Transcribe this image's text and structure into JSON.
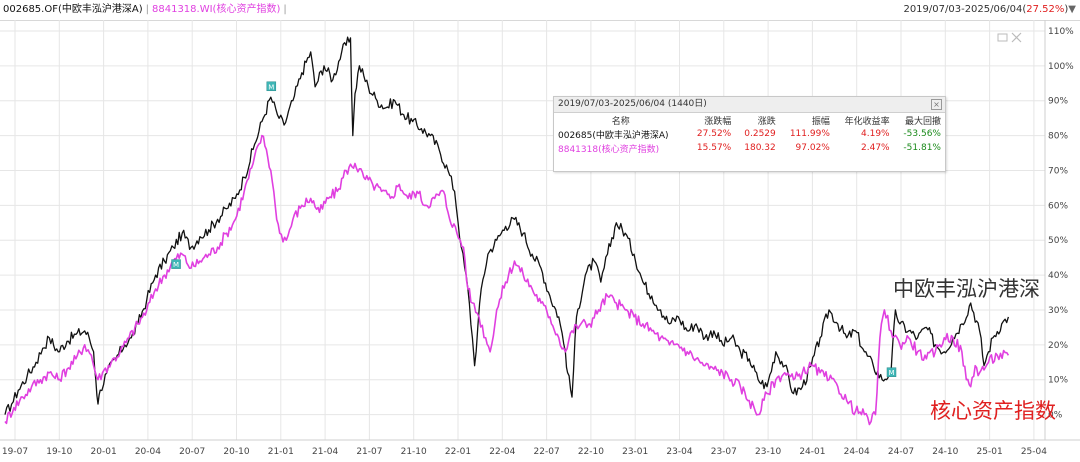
{
  "header": {
    "fund_label": "002685.OF(中欧丰泓沪港深A)",
    "index_label": "8841318.WI(核心资产指数)",
    "range_label": "2019/07/03-2025/06/04",
    "range_pct": "27.52%"
  },
  "colors": {
    "fund": "#111111",
    "index": "#e040e0",
    "grid": "#e6e6e6",
    "badge": "#3fb6b6"
  },
  "stats_panel": {
    "title": "2019/07/03-2025/06/04 (1440日)",
    "columns": [
      "名称",
      "涨跌幅",
      "涨跌",
      "振幅",
      "年化收益率",
      "最大回撤"
    ],
    "rows": [
      {
        "name": "002685(中欧丰泓沪港深A)",
        "change_pct": "27.52%",
        "change": "0.2529",
        "amplitude": "111.99%",
        "annual_return": "4.19%",
        "max_drawdown": "-53.56%"
      },
      {
        "name": "8841318(核心资产指数)",
        "change_pct": "15.57%",
        "change": "180.32",
        "amplitude": "97.02%",
        "annual_return": "2.47%",
        "max_drawdown": "-51.81%"
      }
    ]
  },
  "annotations": {
    "fund_name": "中欧丰泓沪港深",
    "index_name": "核心资产指数",
    "marker": "M"
  },
  "chart_data": {
    "type": "line",
    "x_ticks": [
      "19-07",
      "19-10",
      "20-01",
      "20-04",
      "20-07",
      "20-10",
      "21-01",
      "21-04",
      "21-07",
      "21-10",
      "22-01",
      "22-04",
      "22-07",
      "22-10",
      "23-01",
      "23-04",
      "23-07",
      "23-10",
      "24-01",
      "24-04",
      "24-07",
      "24-10",
      "25-01",
      "25-04"
    ],
    "y_ticks": [
      "0%",
      "10%",
      "20%",
      "30%",
      "40%",
      "50%",
      "60%",
      "70%",
      "80%",
      "90%",
      "100%",
      "110%"
    ],
    "ylim": [
      -5,
      112
    ],
    "series": [
      {
        "name": "002685.OF(中欧丰泓沪港深A)",
        "color": "#111111",
        "points": [
          [
            0,
            0
          ],
          [
            0.15,
            3
          ],
          [
            0.3,
            7
          ],
          [
            0.5,
            11
          ],
          [
            0.7,
            15
          ],
          [
            0.85,
            19
          ],
          [
            1,
            22
          ],
          [
            1.2,
            18
          ],
          [
            1.4,
            21
          ],
          [
            1.6,
            23
          ],
          [
            1.8,
            24
          ],
          [
            1.9,
            22
          ],
          [
            2.0,
            18
          ],
          [
            2.05,
            10
          ],
          [
            2.1,
            3
          ],
          [
            2.15,
            7
          ],
          [
            2.3,
            12
          ],
          [
            2.5,
            16
          ],
          [
            2.7,
            20
          ],
          [
            2.85,
            22
          ],
          [
            3,
            26
          ],
          [
            3.2,
            33
          ],
          [
            3.4,
            40
          ],
          [
            3.6,
            44
          ],
          [
            3.8,
            48
          ],
          [
            4,
            52
          ],
          [
            4.2,
            48
          ],
          [
            4.4,
            51
          ],
          [
            4.6,
            53
          ],
          [
            4.8,
            56
          ],
          [
            5,
            59
          ],
          [
            5.2,
            62
          ],
          [
            5.4,
            68
          ],
          [
            5.6,
            76
          ],
          [
            5.8,
            84
          ],
          [
            6,
            91
          ],
          [
            6.15,
            86
          ],
          [
            6.3,
            83
          ],
          [
            6.5,
            90
          ],
          [
            6.7,
            98
          ],
          [
            6.9,
            104
          ],
          [
            7,
            94
          ],
          [
            7.2,
            100
          ],
          [
            7.4,
            96
          ],
          [
            7.6,
            104
          ],
          [
            7.8,
            108
          ],
          [
            7.85,
            80
          ],
          [
            7.9,
            92
          ],
          [
            8,
            100
          ],
          [
            8.2,
            94
          ],
          [
            8.4,
            90
          ],
          [
            8.6,
            88
          ],
          [
            8.8,
            90
          ],
          [
            9,
            86
          ],
          [
            9.2,
            84
          ],
          [
            9.4,
            82
          ],
          [
            9.6,
            80
          ],
          [
            9.8,
            76
          ],
          [
            10,
            70
          ],
          [
            10.15,
            64
          ],
          [
            10.3,
            48
          ],
          [
            10.45,
            36
          ],
          [
            10.55,
            22
          ],
          [
            10.6,
            14
          ],
          [
            10.75,
            36
          ],
          [
            10.9,
            46
          ],
          [
            11.1,
            50
          ],
          [
            11.3,
            54
          ],
          [
            11.5,
            56
          ],
          [
            11.7,
            52
          ],
          [
            11.9,
            46
          ],
          [
            12.1,
            42
          ],
          [
            12.3,
            34
          ],
          [
            12.5,
            28
          ],
          [
            12.65,
            18
          ],
          [
            12.7,
            12
          ],
          [
            12.8,
            5
          ],
          [
            12.9,
            28
          ],
          [
            13.1,
            40
          ],
          [
            13.3,
            44
          ],
          [
            13.45,
            38
          ],
          [
            13.6,
            46
          ],
          [
            13.8,
            55
          ],
          [
            14,
            52
          ],
          [
            14.2,
            46
          ],
          [
            14.4,
            38
          ],
          [
            14.6,
            34
          ],
          [
            14.8,
            30
          ],
          [
            15,
            26
          ],
          [
            15.2,
            28
          ],
          [
            15.4,
            24
          ],
          [
            15.6,
            26
          ],
          [
            15.8,
            22
          ],
          [
            16,
            24
          ],
          [
            16.2,
            20
          ],
          [
            16.4,
            22
          ],
          [
            16.6,
            18
          ],
          [
            16.8,
            16
          ],
          [
            17,
            10
          ],
          [
            17.2,
            8
          ],
          [
            17.4,
            18
          ],
          [
            17.6,
            14
          ],
          [
            17.8,
            6
          ],
          [
            18,
            8
          ],
          [
            18.2,
            14
          ],
          [
            18.4,
            22
          ],
          [
            18.6,
            30
          ],
          [
            18.8,
            26
          ],
          [
            19,
            22
          ],
          [
            19.2,
            24
          ],
          [
            19.4,
            18
          ],
          [
            19.6,
            14
          ],
          [
            19.8,
            10
          ],
          [
            20,
            12
          ],
          [
            20.1,
            30
          ],
          [
            20.2,
            26
          ],
          [
            20.4,
            24
          ],
          [
            20.6,
            22
          ],
          [
            20.8,
            25
          ],
          [
            21,
            20
          ],
          [
            21.2,
            18
          ],
          [
            21.4,
            22
          ],
          [
            21.6,
            26
          ],
          [
            21.8,
            32
          ],
          [
            22,
            24
          ],
          [
            22.1,
            14
          ],
          [
            22.2,
            18
          ],
          [
            22.3,
            22
          ],
          [
            22.5,
            26
          ],
          [
            22.65,
            28
          ]
        ]
      },
      {
        "name": "8841318.WI(核心资产指数)",
        "color": "#e040e0",
        "points": [
          [
            0,
            -2
          ],
          [
            0.2,
            2
          ],
          [
            0.4,
            5
          ],
          [
            0.6,
            8
          ],
          [
            0.8,
            10
          ],
          [
            1,
            12
          ],
          [
            1.2,
            10
          ],
          [
            1.4,
            13
          ],
          [
            1.6,
            16
          ],
          [
            1.8,
            20
          ],
          [
            1.95,
            17
          ],
          [
            2.0,
            14
          ],
          [
            2.1,
            10
          ],
          [
            2.2,
            12
          ],
          [
            2.4,
            15
          ],
          [
            2.6,
            18
          ],
          [
            2.8,
            22
          ],
          [
            3,
            26
          ],
          [
            3.2,
            30
          ],
          [
            3.4,
            36
          ],
          [
            3.6,
            40
          ],
          [
            3.8,
            44
          ],
          [
            4,
            46
          ],
          [
            4.2,
            42
          ],
          [
            4.4,
            44
          ],
          [
            4.6,
            46
          ],
          [
            4.8,
            48
          ],
          [
            5,
            52
          ],
          [
            5.2,
            56
          ],
          [
            5.4,
            64
          ],
          [
            5.6,
            72
          ],
          [
            5.8,
            80
          ],
          [
            5.9,
            76
          ],
          [
            6,
            70
          ],
          [
            6.1,
            60
          ],
          [
            6.2,
            52
          ],
          [
            6.35,
            50
          ],
          [
            6.5,
            56
          ],
          [
            6.7,
            60
          ],
          [
            6.9,
            62
          ],
          [
            7.1,
            58
          ],
          [
            7.3,
            62
          ],
          [
            7.5,
            64
          ],
          [
            7.7,
            70
          ],
          [
            7.9,
            72
          ],
          [
            8.1,
            68
          ],
          [
            8.3,
            66
          ],
          [
            8.5,
            64
          ],
          [
            8.7,
            62
          ],
          [
            8.9,
            66
          ],
          [
            9.1,
            62
          ],
          [
            9.3,
            64
          ],
          [
            9.5,
            60
          ],
          [
            9.7,
            62
          ],
          [
            9.9,
            64
          ],
          [
            10,
            58
          ],
          [
            10.2,
            52
          ],
          [
            10.35,
            48
          ],
          [
            10.45,
            36
          ],
          [
            10.55,
            32
          ],
          [
            10.7,
            28
          ],
          [
            10.85,
            22
          ],
          [
            10.95,
            18
          ],
          [
            11.1,
            30
          ],
          [
            11.3,
            38
          ],
          [
            11.5,
            44
          ],
          [
            11.7,
            40
          ],
          [
            11.9,
            36
          ],
          [
            12.1,
            32
          ],
          [
            12.3,
            28
          ],
          [
            12.5,
            22
          ],
          [
            12.65,
            18
          ],
          [
            12.8,
            24
          ],
          [
            13,
            26
          ],
          [
            13.2,
            26
          ],
          [
            13.4,
            30
          ],
          [
            13.6,
            34
          ],
          [
            13.8,
            32
          ],
          [
            14,
            30
          ],
          [
            14.2,
            28
          ],
          [
            14.4,
            26
          ],
          [
            14.6,
            24
          ],
          [
            14.8,
            22
          ],
          [
            15,
            20
          ],
          [
            15.2,
            20
          ],
          [
            15.4,
            18
          ],
          [
            15.6,
            16
          ],
          [
            15.8,
            14
          ],
          [
            16,
            13
          ],
          [
            16.2,
            12
          ],
          [
            16.4,
            10
          ],
          [
            16.6,
            8
          ],
          [
            16.8,
            4
          ],
          [
            17,
            0
          ],
          [
            17.2,
            6
          ],
          [
            17.4,
            10
          ],
          [
            17.6,
            12
          ],
          [
            17.8,
            10
          ],
          [
            18,
            12
          ],
          [
            18.2,
            14
          ],
          [
            18.4,
            12
          ],
          [
            18.6,
            10
          ],
          [
            18.8,
            8
          ],
          [
            19,
            4
          ],
          [
            19.2,
            1
          ],
          [
            19.4,
            0
          ],
          [
            19.55,
            -2
          ],
          [
            19.65,
            0
          ],
          [
            19.75,
            22
          ],
          [
            19.85,
            30
          ],
          [
            20,
            24
          ],
          [
            20.2,
            20
          ],
          [
            20.4,
            22
          ],
          [
            20.6,
            18
          ],
          [
            20.8,
            16
          ],
          [
            21,
            18
          ],
          [
            21.2,
            22
          ],
          [
            21.4,
            22
          ],
          [
            21.6,
            18
          ],
          [
            21.7,
            10
          ],
          [
            21.8,
            8
          ],
          [
            21.9,
            14
          ],
          [
            22,
            12
          ],
          [
            22.2,
            15
          ],
          [
            22.4,
            17
          ],
          [
            22.65,
            17
          ]
        ]
      }
    ]
  }
}
